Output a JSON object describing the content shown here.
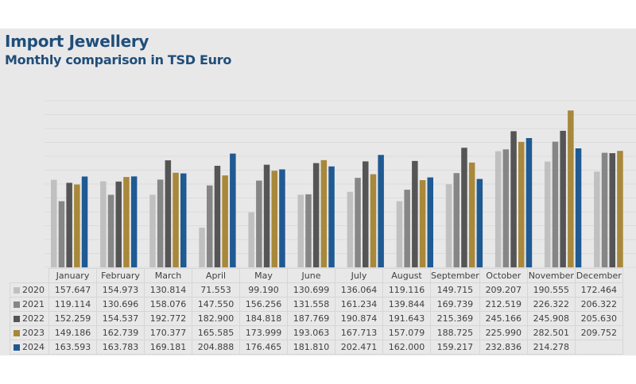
{
  "chart_data": {
    "type": "bar",
    "title": "Import Jewellery",
    "subtitle": "Monthly comparison in TSD Euro",
    "xlabel": "",
    "ylabel": "",
    "ylim": [
      0,
      300
    ],
    "grid": true,
    "legend": "table-below",
    "categories": [
      "January",
      "February",
      "March",
      "April",
      "May",
      "June",
      "July",
      "August",
      "September",
      "October",
      "November",
      "December"
    ],
    "series": [
      {
        "name": "2020",
        "color": "#c0c0c0",
        "values": [
          157.647,
          154.973,
          130.814,
          71.553,
          99.19,
          130.699,
          136.064,
          119.116,
          149.715,
          209.207,
          190.555,
          172.464
        ]
      },
      {
        "name": "2021",
        "color": "#868686",
        "values": [
          119.114,
          130.696,
          158.076,
          147.55,
          156.256,
          131.558,
          161.234,
          139.844,
          169.739,
          212.519,
          226.322,
          206.322
        ]
      },
      {
        "name": "2022",
        "color": "#555555",
        "values": [
          152.259,
          154.537,
          192.772,
          182.9,
          184.818,
          187.769,
          190.874,
          191.643,
          215.369,
          245.166,
          245.908,
          205.63
        ]
      },
      {
        "name": "2023",
        "color": "#a8883a",
        "values": [
          149.186,
          162.739,
          170.377,
          165.585,
          173.999,
          193.063,
          167.713,
          157.079,
          188.725,
          225.99,
          282.501,
          209.752
        ]
      },
      {
        "name": "2024",
        "color": "#1f5a93",
        "values": [
          163.593,
          163.783,
          169.181,
          204.888,
          176.465,
          181.81,
          202.471,
          162.0,
          159.217,
          232.836,
          214.278,
          null
        ]
      }
    ],
    "table_labels": {
      "2020": [
        "157.647",
        "154.973",
        "130.814",
        "71.553",
        "99.190",
        "130.699",
        "136.064",
        "119.116",
        "149.715",
        "209.207",
        "190.555",
        "172.464"
      ],
      "2021": [
        "119.114",
        "130.696",
        "158.076",
        "147.550",
        "156.256",
        "131.558",
        "161.234",
        "139.844",
        "169.739",
        "212.519",
        "226.322",
        "206.322"
      ],
      "2022": [
        "152.259",
        "154.537",
        "192.772",
        "182.900",
        "184.818",
        "187.769",
        "190.874",
        "191.643",
        "215.369",
        "245.166",
        "245.908",
        "205.630"
      ],
      "2023": [
        "149.186",
        "162.739",
        "170.377",
        "165.585",
        "173.999",
        "193.063",
        "167.713",
        "157.079",
        "188.725",
        "225.990",
        "282.501",
        "209.752"
      ],
      "2024": [
        "163.593",
        "163.783",
        "169.181",
        "204.888",
        "176.465",
        "181.810",
        "202.471",
        "162.000",
        "159.217",
        "232.836",
        "214.278",
        ""
      ]
    }
  }
}
